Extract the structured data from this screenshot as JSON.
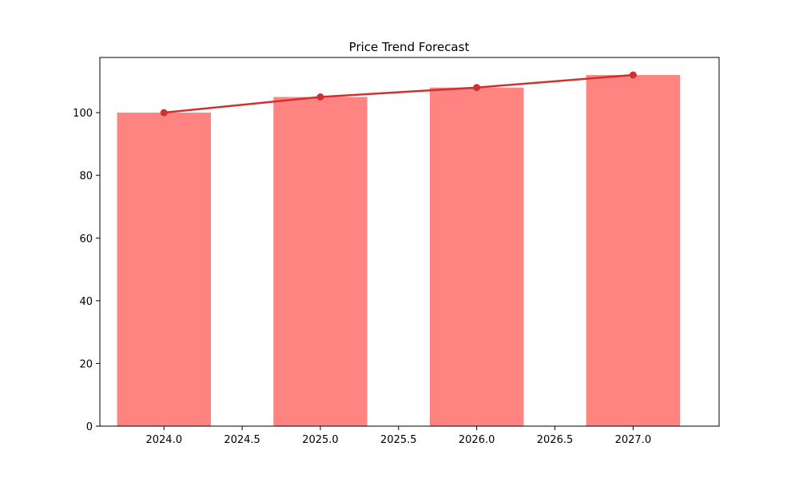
{
  "chart_data": {
    "type": "bar",
    "title": "Price Trend Forecast",
    "xlabel": "",
    "ylabel": "",
    "x": [
      2024,
      2025,
      2026,
      2027
    ],
    "values": [
      100,
      105,
      108,
      112
    ],
    "bar_width": 0.6,
    "xlim": [
      2023.59,
      2027.55
    ],
    "ylim": [
      0,
      117.6
    ],
    "xticks": [
      2024.0,
      2024.5,
      2025.0,
      2025.5,
      2026.0,
      2026.5,
      2027.0
    ],
    "xtick_labels": [
      "2024.0",
      "2024.5",
      "2025.0",
      "2025.5",
      "2026.0",
      "2026.5",
      "2027.0"
    ],
    "yticks": [
      0,
      20,
      40,
      60,
      80,
      100
    ],
    "ytick_labels": [
      "0",
      "20",
      "40",
      "60",
      "80",
      "100"
    ],
    "grid": false,
    "legend": "none",
    "line_overlay": {
      "values": [
        100,
        105,
        108,
        112
      ],
      "marker": "circle"
    },
    "colors": {
      "bar": "#ff8481",
      "line": "#d03030",
      "axis": "#000000"
    }
  }
}
